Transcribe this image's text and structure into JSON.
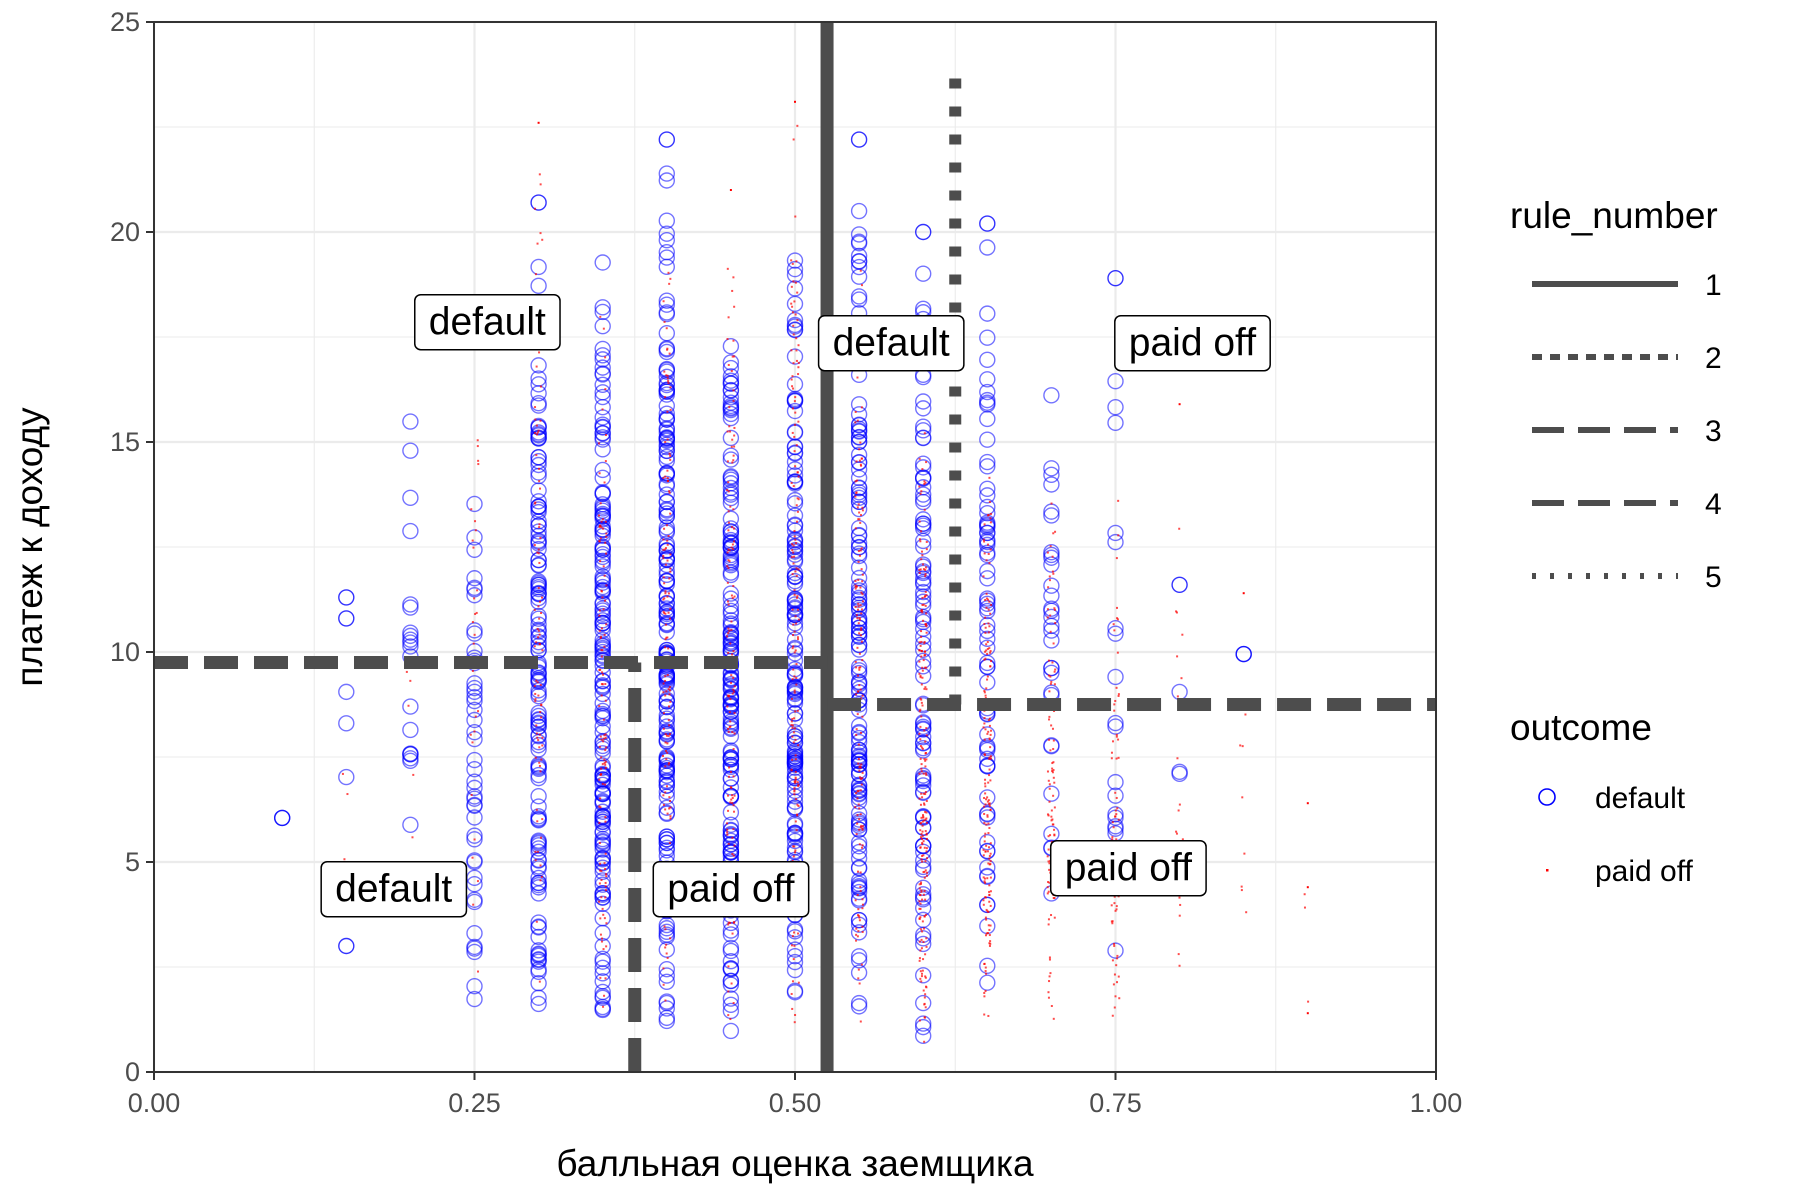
{
  "chart_data": {
    "type": "scatter",
    "xlabel": "балльная оценка заемщика",
    "ylabel": "платеж к доходу",
    "xlim": [
      0,
      1
    ],
    "ylim": [
      0,
      25
    ],
    "x_ticks": [
      "0.00",
      "0.25",
      "0.50",
      "0.75",
      "1.00"
    ],
    "x_tick_values": [
      0,
      0.25,
      0.5,
      0.75,
      1.0
    ],
    "y_ticks": [
      "0",
      "5",
      "10",
      "15",
      "20",
      "25"
    ],
    "y_tick_values": [
      0,
      5,
      10,
      15,
      20,
      25
    ],
    "grid": true,
    "colors": {
      "default": "#0000ff",
      "paid_off": "#ff0000",
      "rule": "#4d4d4d",
      "grid": "#ebebeb"
    },
    "outcome_legend": {
      "title": "outcome",
      "placement": "right",
      "entries": [
        "default",
        "paid off"
      ]
    },
    "rule_legend": {
      "title": "rule_number",
      "placement": "right",
      "entries": [
        "1",
        "2",
        "3",
        "4",
        "5"
      ]
    },
    "rules": [
      {
        "number": "1",
        "style": "solid",
        "orientation": "vertical",
        "x": 0.525,
        "y_from": 0,
        "y_to": 25
      },
      {
        "number": "2",
        "style": "dotted-thick",
        "orientation": "vertical",
        "x": 0.625,
        "y_from": 8.75,
        "y_to": 24
      },
      {
        "number": "3",
        "style": "dashed",
        "orientation": "vertical",
        "x": 0.375,
        "y_from": 0,
        "y_to": 9.75
      },
      {
        "number": "4",
        "style": "dashed",
        "orientation": "horizontal",
        "y": 9.75,
        "x_from": 0,
        "x_to": 0.525
      },
      {
        "number": "4",
        "style": "dashed",
        "orientation": "horizontal",
        "y": 8.75,
        "x_from": 0.525,
        "x_to": 1.0
      }
    ],
    "region_labels": [
      {
        "text": "default",
        "x": 0.26,
        "y": 17.8
      },
      {
        "text": "default",
        "x": 0.575,
        "y": 17.3
      },
      {
        "text": "paid off",
        "x": 0.81,
        "y": 17.3
      },
      {
        "text": "default",
        "x": 0.187,
        "y": 4.3
      },
      {
        "text": "paid off",
        "x": 0.45,
        "y": 4.3
      },
      {
        "text": "paid off",
        "x": 0.76,
        "y": 4.8
      }
    ],
    "series": [
      {
        "name": "default",
        "x_columns": [
          0.1,
          0.15,
          0.2,
          0.25,
          0.3,
          0.35,
          0.4,
          0.45,
          0.5,
          0.55,
          0.6,
          0.65,
          0.7,
          0.75,
          0.8,
          0.85
        ],
        "density": [
          1,
          3,
          22,
          45,
          140,
          170,
          190,
          170,
          160,
          150,
          95,
          70,
          30,
          18,
          3,
          1
        ],
        "y_range": [
          [
            6.05,
            6.05
          ],
          [
            3.0,
            11.3
          ],
          [
            1.9,
            17.2
          ],
          [
            0.4,
            15.9
          ],
          [
            0.9,
            20.7
          ],
          [
            0.2,
            19.7
          ],
          [
            0.9,
            22.2
          ],
          [
            0.9,
            18.7
          ],
          [
            1.0,
            20.4
          ],
          [
            1.0,
            22.2
          ],
          [
            0.6,
            20.0
          ],
          [
            0.7,
            20.2
          ],
          [
            0.8,
            17.7
          ],
          [
            1.4,
            18.9
          ],
          [
            4.0,
            11.6
          ],
          [
            9.95,
            9.95
          ]
        ],
        "sample_points": [
          [
            0.1,
            6.05
          ],
          [
            0.15,
            11.3
          ],
          [
            0.15,
            10.8
          ],
          [
            0.15,
            3.0
          ],
          [
            0.3,
            20.7
          ],
          [
            0.4,
            22.2
          ],
          [
            0.55,
            22.2
          ],
          [
            0.6,
            20.0
          ],
          [
            0.65,
            20.2
          ],
          [
            0.75,
            18.9
          ],
          [
            0.8,
            11.6
          ],
          [
            0.85,
            9.95
          ]
        ]
      },
      {
        "name": "paid off",
        "x_columns": [
          0.15,
          0.2,
          0.25,
          0.3,
          0.35,
          0.4,
          0.45,
          0.5,
          0.55,
          0.6,
          0.65,
          0.7,
          0.75,
          0.8,
          0.85,
          0.9
        ],
        "density": [
          3,
          10,
          30,
          90,
          120,
          140,
          130,
          160,
          150,
          220,
          170,
          110,
          70,
          20,
          8,
          3
        ],
        "y_range": [
          [
            1.9,
            7.8
          ],
          [
            2.0,
            10.5
          ],
          [
            0.4,
            19.0
          ],
          [
            0.9,
            22.6
          ],
          [
            0.5,
            19.6
          ],
          [
            0.9,
            20.6
          ],
          [
            0.9,
            21.0
          ],
          [
            0.9,
            23.1
          ],
          [
            0.9,
            19.8
          ],
          [
            0.5,
            16.0
          ],
          [
            0.5,
            15.0
          ],
          [
            0.6,
            14.6
          ],
          [
            0.8,
            14.2
          ],
          [
            1.2,
            15.9
          ],
          [
            2.8,
            11.4
          ],
          [
            1.4,
            6.4
          ]
        ],
        "sample_points": [
          [
            0.3,
            22.6
          ],
          [
            0.45,
            21.0
          ],
          [
            0.5,
            23.1
          ],
          [
            0.8,
            15.9
          ],
          [
            0.85,
            11.4
          ],
          [
            0.9,
            6.4
          ],
          [
            0.9,
            4.4
          ],
          [
            0.9,
            1.4
          ]
        ]
      }
    ]
  }
}
